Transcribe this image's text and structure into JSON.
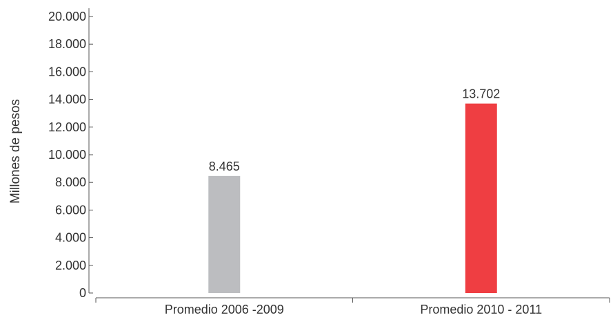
{
  "chart_data": {
    "type": "bar",
    "title": "",
    "xlabel": "",
    "ylabel": "Millones de pesos",
    "ylim": [
      0,
      20000
    ],
    "y_ticks": [
      0,
      2000,
      4000,
      6000,
      8000,
      10000,
      12000,
      14000,
      16000,
      18000,
      20000
    ],
    "y_tick_labels": [
      "0",
      "2.000",
      "4.000",
      "6.000",
      "8.000",
      "10.000",
      "12.000",
      "14.000",
      "16.000",
      "18.000",
      "20.000"
    ],
    "grid": false,
    "categories": [
      "Promedio 2006 -2009",
      "Promedio 2010 - 2011"
    ],
    "values": [
      8465,
      13702
    ],
    "value_labels": [
      "8.465",
      "13.702"
    ],
    "bar_colors": [
      "#bcbdc0",
      "#ef3e42"
    ]
  }
}
